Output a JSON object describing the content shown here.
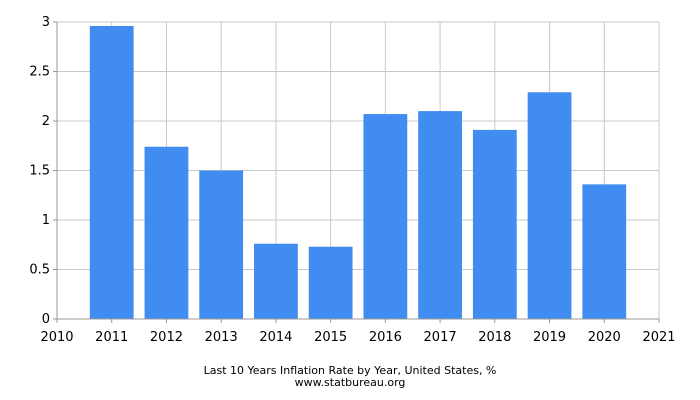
{
  "chart_data": {
    "type": "bar",
    "title": "Last 10 Years Inflation Rate by Year, United States, %",
    "source": "www.statbureau.org",
    "xlabel": "",
    "ylabel": "",
    "x": [
      2011,
      2012,
      2013,
      2014,
      2015,
      2016,
      2017,
      2018,
      2019,
      2020
    ],
    "values": [
      2.96,
      1.74,
      1.5,
      0.76,
      0.73,
      2.07,
      2.1,
      1.91,
      2.29,
      1.36
    ],
    "xlim": [
      2010,
      2021
    ],
    "ylim": [
      0,
      3
    ],
    "x_ticks": [
      "2010",
      "2011",
      "2012",
      "2013",
      "2014",
      "2015",
      "2016",
      "2017",
      "2018",
      "2019",
      "2020",
      "2021"
    ],
    "y_ticks": [
      "0",
      "0.5",
      "1",
      "1.5",
      "2",
      "2.5",
      "3"
    ],
    "grid": true,
    "legend": "none",
    "colors": {
      "bar": "#418cf0",
      "grid": "#c8c8c8",
      "axis": "#999999"
    }
  }
}
